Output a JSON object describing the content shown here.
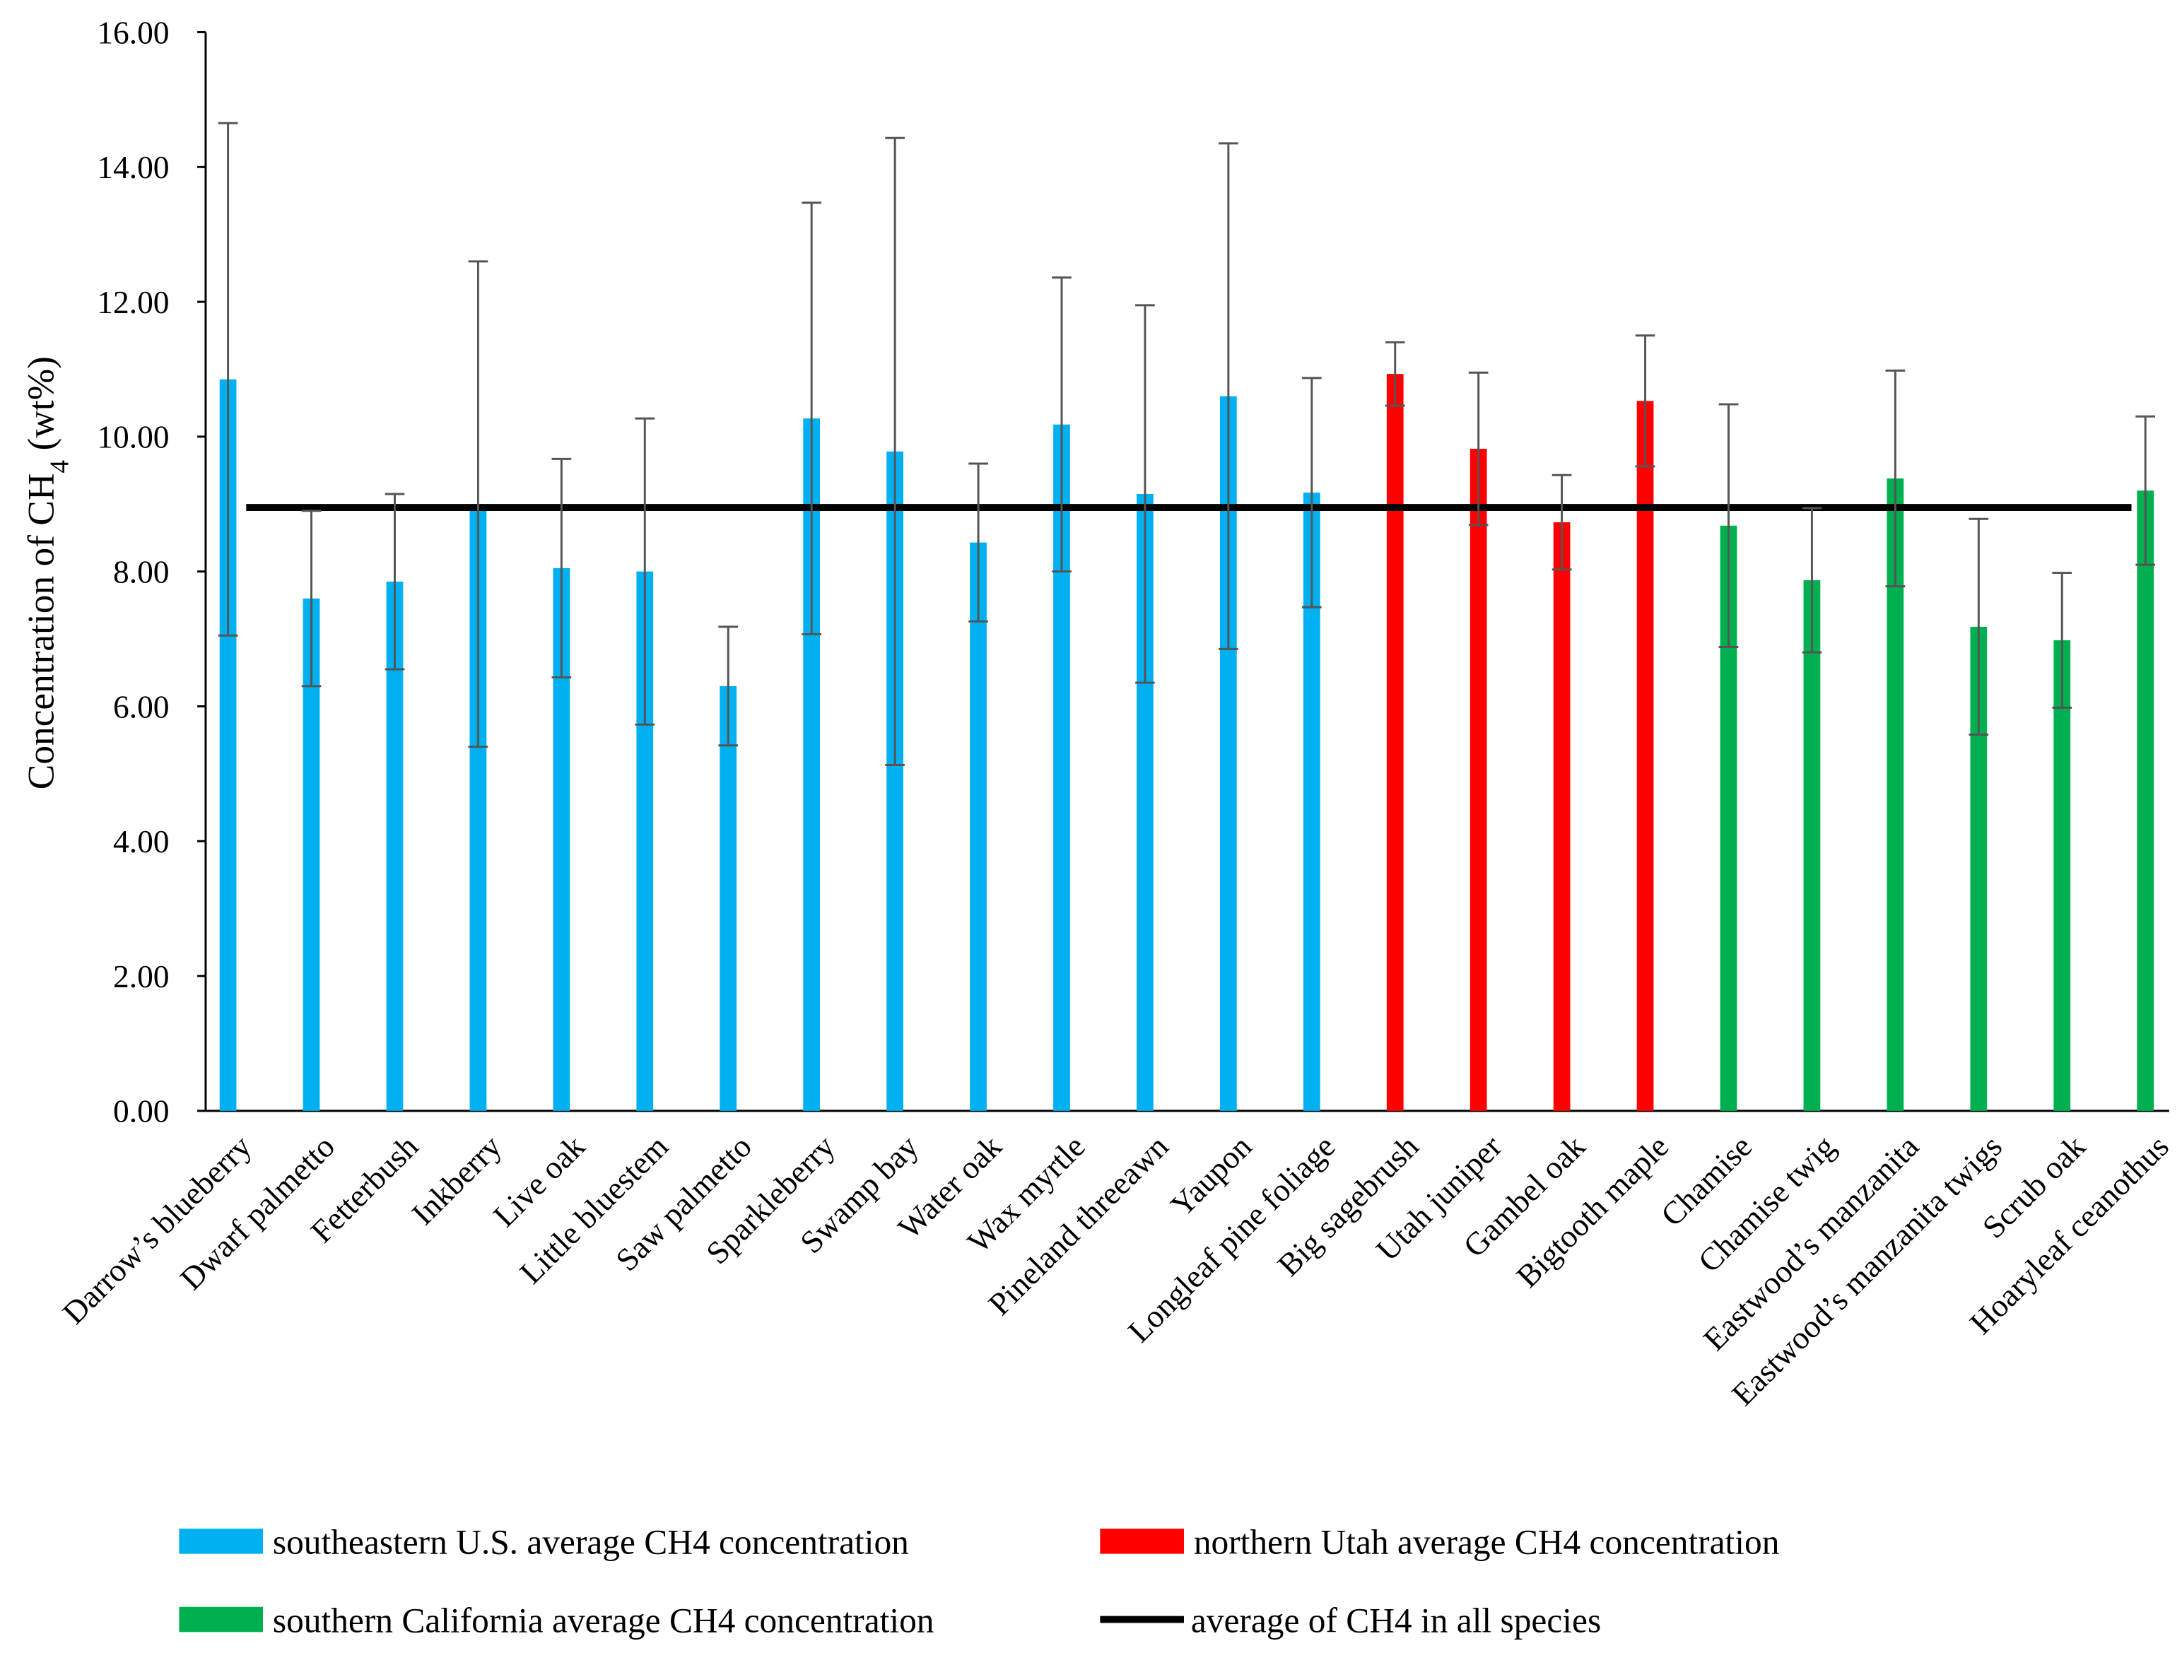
{
  "chart_data": {
    "type": "bar",
    "y_label_parts": [
      "Concentration of CH",
      "4",
      " (wt%)"
    ],
    "categories": [
      "Darrow’s blueberry",
      "Dwarf palmetto",
      "Fetterbush",
      "Inkberry",
      "Live oak",
      "Little bluestem",
      "Saw palmetto",
      "Sparkleberry",
      "Swamp bay",
      "Water oak",
      "Wax myrtle",
      "Pineland threeawn",
      "Yaupon",
      "Longleaf pine foliage",
      "Big sagebrush",
      "Utah juniper",
      "Gambel oak",
      "Bigtooth maple",
      "Chamise",
      "Chamise twig",
      "Eastwood’s manzanita",
      "Eastwood’s manzanita twigs",
      "Scrub oak",
      "Hoaryleaf ceanothus"
    ],
    "series": [
      {
        "name": "southeastern U.S. average CH4 concentration",
        "color": "#00b0f0",
        "values": [
          10.85,
          7.6,
          7.85,
          9.0,
          8.05,
          8.0,
          6.3,
          10.27,
          9.78,
          8.43,
          10.18,
          9.15,
          10.6,
          9.17,
          null,
          null,
          null,
          null,
          null,
          null,
          null,
          null,
          null,
          null
        ],
        "errors": [
          3.8,
          1.3,
          1.3,
          3.6,
          1.62,
          2.27,
          0.88,
          3.2,
          4.65,
          1.17,
          2.18,
          2.8,
          3.75,
          1.7,
          null,
          null,
          null,
          null,
          null,
          null,
          null,
          null,
          null,
          null
        ]
      },
      {
        "name": "northern Utah average CH4 concentration",
        "color": "#ff0000",
        "values": [
          null,
          null,
          null,
          null,
          null,
          null,
          null,
          null,
          null,
          null,
          null,
          null,
          null,
          null,
          10.93,
          9.82,
          8.73,
          10.53,
          null,
          null,
          null,
          null,
          null,
          null
        ],
        "errors": [
          null,
          null,
          null,
          null,
          null,
          null,
          null,
          null,
          null,
          null,
          null,
          null,
          null,
          null,
          0.47,
          1.13,
          0.7,
          0.97,
          null,
          null,
          null,
          null,
          null,
          null
        ]
      },
      {
        "name": "southern California average CH4 concentration",
        "color": "#00b050",
        "values": [
          null,
          null,
          null,
          null,
          null,
          null,
          null,
          null,
          null,
          null,
          null,
          null,
          null,
          null,
          null,
          null,
          null,
          null,
          8.68,
          7.87,
          9.38,
          7.18,
          6.98,
          9.2
        ],
        "errors": [
          null,
          null,
          null,
          null,
          null,
          null,
          null,
          null,
          null,
          null,
          null,
          null,
          null,
          null,
          null,
          null,
          null,
          null,
          1.8,
          1.07,
          1.6,
          1.6,
          1.0,
          1.1
        ]
      }
    ],
    "reference_line": {
      "name": "average of CH4 in all species",
      "color": "#000000",
      "value": 8.95
    },
    "ylim": [
      0,
      16
    ],
    "yticks": [
      {
        "value": 0,
        "label": "0.00"
      },
      {
        "value": 2,
        "label": "2.00"
      },
      {
        "value": 4,
        "label": "4.00"
      },
      {
        "value": 6,
        "label": "6.00"
      },
      {
        "value": 8,
        "label": "8.00"
      },
      {
        "value": 10,
        "label": "10.00"
      },
      {
        "value": 12,
        "label": "12.00"
      },
      {
        "value": 14,
        "label": "14.00"
      },
      {
        "value": 16,
        "label": "16.00"
      }
    ],
    "grid": false
  }
}
